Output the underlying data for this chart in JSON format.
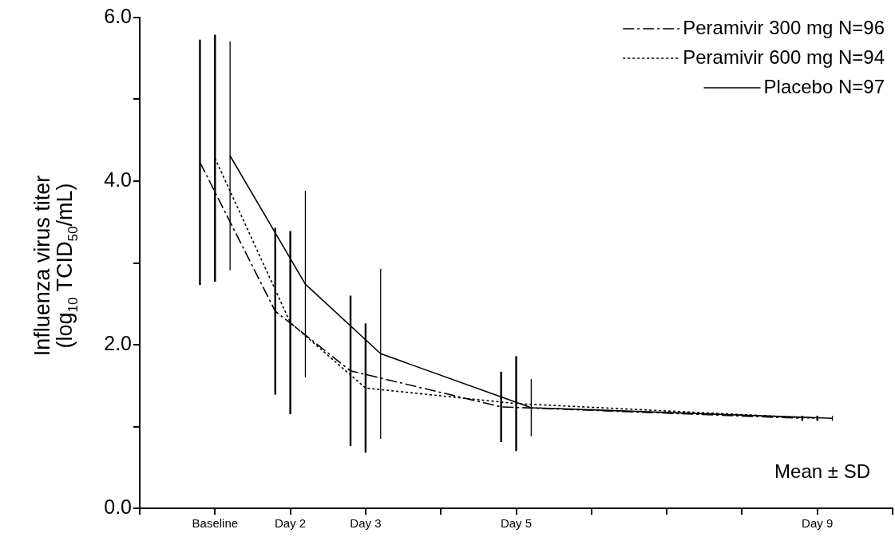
{
  "chart_data": {
    "type": "line",
    "ylabel": "Influenza virus titer\n(log$_{10}$ TCID$_{50}$/mL)",
    "categories": [
      null,
      null,
      null,
      null,
      null,
      "Baseline",
      null,
      null,
      null,
      null,
      "Day 2",
      null,
      null,
      null,
      null,
      "Day 3",
      null,
      null,
      null,
      null,
      null,
      null,
      null,
      null,
      null,
      "Day 5",
      null,
      null,
      null,
      null,
      null,
      null,
      null,
      null,
      null,
      null,
      null,
      null,
      null,
      null,
      null,
      null,
      null,
      null,
      null,
      "Day 9",
      null,
      null,
      null,
      null,
      null
    ],
    "ylim": [
      0,
      6
    ],
    "yticks": [
      {
        "value": 0,
        "label": "0.0"
      },
      {
        "value": 1,
        "label": null
      },
      {
        "value": 2,
        "label": "2.0"
      },
      {
        "value": 3,
        "label": null
      },
      {
        "value": 4,
        "label": "4.0"
      },
      {
        "value": 5,
        "label": null
      },
      {
        "value": 6,
        "label": "6.0"
      }
    ],
    "legend": "top right",
    "annotations": [
      "Mean ± SD"
    ],
    "series": [
      {
        "name": "Peramivir 300 mg N=96",
        "color": "#000000",
        "line_style": "dashdot",
        "values": [
          null,
          null,
          null,
          null,
          4.23,
          null,
          null,
          null,
          null,
          2.41,
          null,
          null,
          null,
          null,
          1.68,
          null,
          null,
          null,
          null,
          null,
          null,
          null,
          null,
          null,
          1.24,
          null,
          null,
          null,
          null,
          null,
          null,
          null,
          null,
          null,
          null,
          null,
          null,
          null,
          null,
          null,
          null,
          null,
          null,
          null,
          1.1,
          null,
          null,
          null,
          null,
          null,
          null
        ],
        "errors": [
          null,
          null,
          null,
          null,
          1.5,
          null,
          null,
          null,
          null,
          1.02,
          null,
          null,
          null,
          null,
          0.92,
          null,
          null,
          null,
          null,
          null,
          null,
          null,
          null,
          null,
          0.43,
          null,
          null,
          null,
          null,
          null,
          null,
          null,
          null,
          null,
          null,
          null,
          null,
          null,
          null,
          null,
          null,
          null,
          null,
          null,
          0.03,
          null,
          null,
          null,
          null,
          null,
          null
        ]
      },
      {
        "name": "Peramivir 600 mg N=94",
        "color": "#000000",
        "line_style": "dotted",
        "values": [
          null,
          null,
          null,
          null,
          null,
          4.28,
          null,
          null,
          null,
          null,
          2.27,
          null,
          null,
          null,
          null,
          1.47,
          null,
          null,
          null,
          null,
          null,
          null,
          null,
          null,
          null,
          1.28,
          null,
          null,
          null,
          null,
          null,
          null,
          null,
          null,
          null,
          null,
          null,
          null,
          null,
          null,
          null,
          null,
          null,
          null,
          null,
          1.1,
          null,
          null,
          null,
          null,
          null
        ],
        "errors": [
          null,
          null,
          null,
          null,
          null,
          1.51,
          null,
          null,
          null,
          null,
          1.12,
          null,
          null,
          null,
          null,
          0.79,
          null,
          null,
          null,
          null,
          null,
          null,
          null,
          null,
          null,
          0.58,
          null,
          null,
          null,
          null,
          null,
          null,
          null,
          null,
          null,
          null,
          null,
          null,
          null,
          null,
          null,
          null,
          null,
          null,
          null,
          0.03,
          null,
          null,
          null,
          null,
          null
        ]
      },
      {
        "name": "Placebo N=97",
        "color": "#000000",
        "line_style": "solid",
        "values": [
          null,
          null,
          null,
          null,
          null,
          null,
          4.31,
          null,
          null,
          null,
          null,
          2.74,
          null,
          null,
          null,
          null,
          1.89,
          null,
          null,
          null,
          null,
          null,
          null,
          null,
          null,
          null,
          1.23,
          null,
          null,
          null,
          null,
          null,
          null,
          null,
          null,
          null,
          null,
          null,
          null,
          null,
          null,
          null,
          null,
          null,
          null,
          null,
          1.1,
          null,
          null,
          null,
          null
        ],
        "errors": [
          null,
          null,
          null,
          null,
          null,
          null,
          1.4,
          null,
          null,
          null,
          null,
          1.14,
          null,
          null,
          null,
          null,
          1.04,
          null,
          null,
          null,
          null,
          null,
          null,
          null,
          null,
          null,
          0.35,
          null,
          null,
          null,
          null,
          null,
          null,
          null,
          null,
          null,
          null,
          null,
          null,
          null,
          null,
          null,
          null,
          null,
          null,
          null,
          0.03,
          null,
          null,
          null,
          null
        ]
      }
    ]
  }
}
